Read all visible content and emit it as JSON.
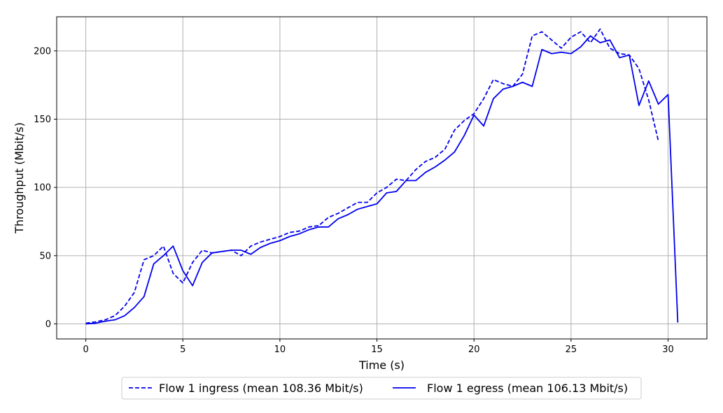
{
  "chart_data": {
    "type": "line",
    "xlabel": "Time (s)",
    "ylabel": "Throughput (Mbit/s)",
    "xlim": [
      -1.5,
      32
    ],
    "ylim": [
      -11,
      225
    ],
    "xticks": [
      0,
      5,
      10,
      15,
      20,
      25,
      30
    ],
    "yticks": [
      0,
      50,
      100,
      150,
      200
    ],
    "grid": true,
    "legend_position": "bottom-center",
    "colors": {
      "series": "#0000ee",
      "grid": "#b0b0b0",
      "axes": "#000000"
    },
    "series": [
      {
        "name": "Flow 1 ingress (mean 108.36 Mbit/s)",
        "style": "dashed",
        "x": [
          0,
          0.5,
          1,
          1.5,
          2,
          2.5,
          3,
          3.5,
          4,
          4.5,
          5,
          5.5,
          6,
          6.5,
          7,
          7.5,
          8,
          8.5,
          9,
          9.5,
          10,
          10.5,
          11,
          11.5,
          12,
          12.5,
          13,
          13.5,
          14,
          14.5,
          15,
          15.5,
          16,
          16.5,
          17,
          17.5,
          18,
          18.5,
          19,
          19.5,
          20,
          20.5,
          21,
          21.5,
          22,
          22.5,
          23,
          23.5,
          24,
          24.5,
          25,
          25.5,
          26,
          26.5,
          27,
          27.5,
          28,
          28.5,
          29,
          29.5
        ],
        "y": [
          0.5,
          1.5,
          3,
          6,
          13,
          23,
          47,
          50,
          57,
          37,
          30,
          45,
          54,
          52,
          53,
          54,
          50,
          57,
          60,
          62,
          64,
          67,
          68,
          71,
          72,
          78,
          81,
          85,
          89,
          89,
          96,
          100,
          106,
          105,
          113,
          119,
          122,
          128,
          142,
          149,
          154,
          165,
          179,
          176,
          174,
          183,
          211,
          214,
          208,
          202,
          210,
          214,
          206,
          216,
          202,
          198,
          197,
          187,
          164,
          134
        ]
      },
      {
        "name": "Flow 1 egress (mean 106.13 Mbit/s)",
        "style": "solid",
        "x": [
          0,
          0.5,
          1,
          1.5,
          2,
          2.5,
          3,
          3.5,
          4,
          4.5,
          5,
          5.5,
          6,
          6.5,
          7,
          7.5,
          8,
          8.5,
          9,
          9.5,
          10,
          10.5,
          11,
          11.5,
          12,
          12.5,
          13,
          13.5,
          14,
          14.5,
          15,
          15.5,
          16,
          16.5,
          17,
          17.5,
          18,
          18.5,
          19,
          19.5,
          20,
          20.5,
          21,
          21.5,
          22,
          22.5,
          23,
          23.5,
          24,
          24.5,
          25,
          25.5,
          26,
          26.5,
          27,
          27.5,
          28,
          28.5,
          29,
          29.5,
          30,
          30.5
        ],
        "y": [
          0,
          0.5,
          2,
          3,
          6,
          12,
          20,
          44,
          50,
          57,
          39,
          28,
          45,
          52,
          53,
          54,
          54,
          51,
          56,
          59,
          61,
          64,
          66,
          69,
          71,
          71,
          77,
          80,
          84,
          86,
          88,
          96,
          97,
          105,
          105,
          111,
          115,
          120,
          126,
          138,
          153,
          145,
          165,
          172,
          174,
          177,
          174,
          201,
          198,
          199,
          198,
          203,
          211,
          206,
          208,
          195,
          197,
          160,
          178,
          161,
          168,
          1
        ]
      }
    ]
  }
}
